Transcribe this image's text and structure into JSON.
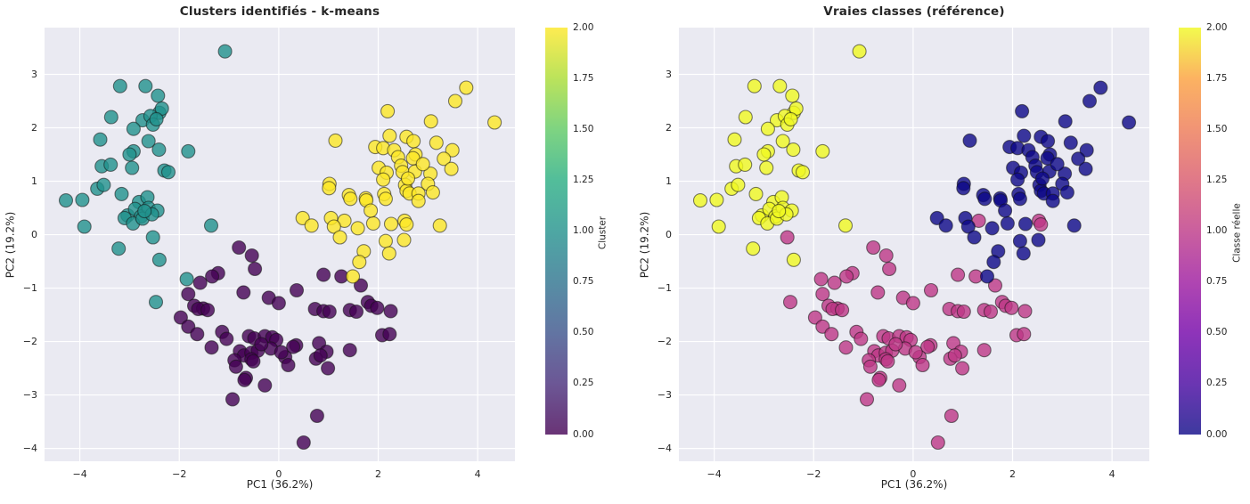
{
  "colors": {
    "figure_background": "#ffffff",
    "axes_background": "#eaeaf2",
    "grid_color": "#ffffff",
    "text_color": "#262626",
    "point_edge_color": "#141414",
    "point_alpha": 0.8
  },
  "points_format": [
    "x",
    "y",
    "kmeans_cluster",
    "true_class"
  ],
  "points": [
    [
      -1.08,
      3.43,
      1,
      2
    ],
    [
      -3.19,
      2.78,
      1,
      2
    ],
    [
      -2.68,
      2.78,
      1,
      2
    ],
    [
      -2.43,
      2.6,
      1,
      2
    ],
    [
      -3.37,
      2.2,
      1,
      2
    ],
    [
      -2.4,
      2.28,
      1,
      2
    ],
    [
      -2.35,
      2.36,
      1,
      2
    ],
    [
      -2.74,
      2.14,
      1,
      2
    ],
    [
      -2.58,
      2.22,
      1,
      2
    ],
    [
      -2.92,
      1.98,
      1,
      2
    ],
    [
      -2.53,
      2.06,
      1,
      2
    ],
    [
      -2.46,
      2.16,
      1,
      2
    ],
    [
      -3.59,
      1.78,
      1,
      2
    ],
    [
      -2.62,
      1.75,
      1,
      2
    ],
    [
      -2.41,
      1.59,
      1,
      2
    ],
    [
      -2.92,
      1.56,
      1,
      2
    ],
    [
      -1.82,
      1.56,
      1,
      2
    ],
    [
      -3.0,
      1.5,
      1,
      2
    ],
    [
      -3.56,
      1.28,
      1,
      2
    ],
    [
      -3.38,
      1.31,
      1,
      2
    ],
    [
      -2.95,
      1.25,
      1,
      2
    ],
    [
      -2.3,
      1.2,
      1,
      2
    ],
    [
      -2.22,
      1.17,
      1,
      2
    ],
    [
      -3.65,
      0.86,
      1,
      2
    ],
    [
      -3.52,
      0.93,
      1,
      2
    ],
    [
      -3.16,
      0.76,
      1,
      2
    ],
    [
      -4.28,
      0.64,
      1,
      2
    ],
    [
      -3.95,
      0.65,
      1,
      2
    ],
    [
      -2.81,
      0.61,
      1,
      2
    ],
    [
      -2.64,
      0.7,
      1,
      2
    ],
    [
      -3.04,
      0.36,
      1,
      2
    ],
    [
      -2.89,
      0.48,
      1,
      2
    ],
    [
      -3.1,
      0.31,
      1,
      2
    ],
    [
      -2.77,
      0.34,
      1,
      2
    ],
    [
      -2.62,
      0.5,
      1,
      2
    ],
    [
      -2.44,
      0.45,
      1,
      2
    ],
    [
      -2.93,
      0.21,
      1,
      2
    ],
    [
      -2.74,
      0.3,
      1,
      2
    ],
    [
      -2.55,
      0.38,
      1,
      2
    ],
    [
      -2.7,
      0.44,
      1,
      2
    ],
    [
      -3.91,
      0.15,
      1,
      2
    ],
    [
      -2.53,
      -0.05,
      1,
      1
    ],
    [
      -3.22,
      -0.26,
      1,
      2
    ],
    [
      -2.4,
      -0.47,
      1,
      2
    ],
    [
      -1.36,
      0.17,
      1,
      2
    ],
    [
      -1.85,
      -0.83,
      1,
      1
    ],
    [
      -2.47,
      -1.26,
      1,
      1
    ],
    [
      -0.8,
      -0.24,
      0,
      1
    ],
    [
      -0.54,
      -0.39,
      0,
      1
    ],
    [
      -0.48,
      -0.64,
      0,
      1
    ],
    [
      -1.22,
      -0.72,
      0,
      1
    ],
    [
      -1.34,
      -0.78,
      0,
      1
    ],
    [
      -1.58,
      -0.9,
      0,
      1
    ],
    [
      -0.71,
      -1.08,
      0,
      1
    ],
    [
      0.36,
      -1.04,
      0,
      1
    ],
    [
      0.9,
      -0.75,
      0,
      1
    ],
    [
      1.26,
      -0.78,
      0,
      1
    ],
    [
      1.65,
      -0.95,
      0,
      1
    ],
    [
      -0.2,
      -1.18,
      0,
      1
    ],
    [
      0.0,
      -1.28,
      0,
      1
    ],
    [
      -1.82,
      -1.11,
      0,
      1
    ],
    [
      -1.7,
      -1.33,
      0,
      1
    ],
    [
      -1.52,
      -1.38,
      0,
      1
    ],
    [
      -1.62,
      -1.39,
      0,
      1
    ],
    [
      -1.43,
      -1.41,
      0,
      1
    ],
    [
      0.73,
      -1.39,
      0,
      1
    ],
    [
      0.9,
      -1.43,
      0,
      1
    ],
    [
      1.02,
      -1.44,
      0,
      1
    ],
    [
      1.43,
      -1.41,
      0,
      1
    ],
    [
      1.56,
      -1.44,
      0,
      1
    ],
    [
      1.79,
      -1.26,
      0,
      1
    ],
    [
      1.86,
      -1.33,
      0,
      1
    ],
    [
      1.98,
      -1.37,
      0,
      1
    ],
    [
      2.25,
      -1.43,
      0,
      1
    ],
    [
      -1.97,
      -1.55,
      0,
      1
    ],
    [
      -1.82,
      -1.72,
      0,
      1
    ],
    [
      -1.64,
      -1.86,
      0,
      1
    ],
    [
      -1.14,
      -1.82,
      0,
      1
    ],
    [
      2.08,
      -1.88,
      0,
      1
    ],
    [
      2.23,
      -1.86,
      0,
      1
    ],
    [
      -0.6,
      -1.9,
      0,
      1
    ],
    [
      -0.49,
      -1.94,
      0,
      1
    ],
    [
      -0.28,
      -1.9,
      0,
      1
    ],
    [
      -0.13,
      -1.92,
      0,
      1
    ],
    [
      -0.05,
      -1.97,
      0,
      1
    ],
    [
      -1.35,
      -2.11,
      0,
      1
    ],
    [
      -0.16,
      -2.13,
      0,
      1
    ],
    [
      0.35,
      -2.07,
      0,
      1
    ],
    [
      0.29,
      -2.1,
      0,
      1
    ],
    [
      0.81,
      -2.03,
      0,
      1
    ],
    [
      0.96,
      -2.19,
      0,
      1
    ],
    [
      -0.78,
      -2.18,
      0,
      1
    ],
    [
      -0.7,
      -2.26,
      0,
      1
    ],
    [
      -0.55,
      -2.21,
      0,
      1
    ],
    [
      -0.42,
      -2.17,
      0,
      1
    ],
    [
      -0.55,
      -2.33,
      0,
      1
    ],
    [
      -0.51,
      -2.37,
      0,
      1
    ],
    [
      -0.89,
      -2.35,
      0,
      1
    ],
    [
      -0.86,
      -2.47,
      0,
      1
    ],
    [
      0.13,
      -2.29,
      0,
      1
    ],
    [
      0.19,
      -2.44,
      0,
      1
    ],
    [
      0.75,
      -2.32,
      0,
      1
    ],
    [
      0.84,
      -2.26,
      0,
      1
    ],
    [
      0.99,
      -2.5,
      0,
      1
    ],
    [
      1.43,
      -2.16,
      0,
      1
    ],
    [
      -0.66,
      -2.68,
      0,
      1
    ],
    [
      -0.69,
      -2.72,
      0,
      1
    ],
    [
      -0.28,
      -2.82,
      0,
      1
    ],
    [
      -0.93,
      -3.08,
      0,
      1
    ],
    [
      0.77,
      -3.39,
      0,
      1
    ],
    [
      0.5,
      -3.89,
      0,
      1
    ],
    [
      -0.35,
      -2.05,
      0,
      1
    ],
    [
      0.05,
      -2.2,
      0,
      1
    ],
    [
      -1.05,
      -1.95,
      0,
      1
    ],
    [
      3.77,
      2.75,
      2,
      0
    ],
    [
      3.55,
      2.5,
      2,
      0
    ],
    [
      2.19,
      2.31,
      2,
      0
    ],
    [
      3.06,
      2.12,
      2,
      0
    ],
    [
      4.34,
      2.1,
      2,
      0
    ],
    [
      1.14,
      1.76,
      2,
      0
    ],
    [
      2.23,
      1.85,
      2,
      0
    ],
    [
      2.57,
      1.83,
      2,
      0
    ],
    [
      2.71,
      1.75,
      2,
      0
    ],
    [
      1.94,
      1.64,
      2,
      0
    ],
    [
      2.1,
      1.62,
      2,
      0
    ],
    [
      2.32,
      1.58,
      2,
      0
    ],
    [
      3.17,
      1.72,
      2,
      0
    ],
    [
      2.75,
      1.5,
      2,
      0
    ],
    [
      3.49,
      1.58,
      2,
      0
    ],
    [
      3.32,
      1.42,
      2,
      0
    ],
    [
      2.7,
      1.43,
      2,
      0
    ],
    [
      2.4,
      1.45,
      2,
      0
    ],
    [
      3.47,
      1.23,
      2,
      0
    ],
    [
      2.01,
      1.25,
      2,
      0
    ],
    [
      2.17,
      1.16,
      2,
      0
    ],
    [
      2.46,
      1.29,
      2,
      0
    ],
    [
      2.49,
      1.17,
      2,
      0
    ],
    [
      2.74,
      1.18,
      2,
      0
    ],
    [
      3.05,
      1.14,
      2,
      0
    ],
    [
      2.9,
      1.32,
      2,
      0
    ],
    [
      2.1,
      1.03,
      2,
      0
    ],
    [
      2.54,
      0.93,
      2,
      0
    ],
    [
      2.57,
      0.82,
      2,
      0
    ],
    [
      2.6,
      1.05,
      2,
      0
    ],
    [
      3.0,
      0.95,
      2,
      0
    ],
    [
      1.02,
      0.95,
      2,
      0
    ],
    [
      1.01,
      0.87,
      2,
      0
    ],
    [
      1.41,
      0.74,
      2,
      0
    ],
    [
      1.44,
      0.67,
      2,
      0
    ],
    [
      1.75,
      0.68,
      2,
      0
    ],
    [
      1.76,
      0.64,
      2,
      0
    ],
    [
      2.12,
      0.76,
      2,
      0
    ],
    [
      2.15,
      0.67,
      2,
      0
    ],
    [
      2.63,
      0.77,
      2,
      0
    ],
    [
      2.81,
      0.77,
      2,
      0
    ],
    [
      3.1,
      0.79,
      2,
      0
    ],
    [
      2.81,
      0.63,
      2,
      0
    ],
    [
      1.05,
      0.31,
      2,
      0
    ],
    [
      1.32,
      0.26,
      2,
      1
    ],
    [
      1.11,
      0.15,
      2,
      0
    ],
    [
      1.59,
      0.12,
      2,
      0
    ],
    [
      1.9,
      0.21,
      2,
      0
    ],
    [
      2.26,
      0.2,
      2,
      0
    ],
    [
      2.53,
      0.26,
      2,
      1
    ],
    [
      2.57,
      0.19,
      2,
      1
    ],
    [
      3.24,
      0.17,
      2,
      0
    ],
    [
      1.23,
      -0.05,
      2,
      0
    ],
    [
      2.15,
      -0.12,
      2,
      0
    ],
    [
      2.52,
      -0.1,
      2,
      0
    ],
    [
      1.71,
      -0.31,
      2,
      0
    ],
    [
      2.22,
      -0.35,
      2,
      0
    ],
    [
      1.62,
      -0.51,
      2,
      0
    ],
    [
      1.49,
      -0.78,
      2,
      0
    ],
    [
      0.48,
      0.31,
      2,
      0
    ],
    [
      0.66,
      0.17,
      2,
      0
    ],
    [
      1.85,
      0.45,
      2,
      0
    ]
  ],
  "chart_data": [
    {
      "type": "scatter",
      "title": "Clusters identifiés - k-means",
      "xlabel": "PC1 (36.2%)",
      "ylabel": "PC2 (19.2%)",
      "xlim": [
        -4.71,
        4.75
      ],
      "ylim": [
        -4.24,
        3.875
      ],
      "grid": true,
      "xticks": {
        "values": [
          -4,
          -2,
          0,
          2,
          4
        ],
        "labels": [
          "−4",
          "−2",
          "0",
          "2",
          "4"
        ]
      },
      "yticks": {
        "values": [
          3,
          2,
          1,
          0,
          -1,
          -2,
          -3,
          -4
        ],
        "labels": [
          "3",
          "2",
          "1",
          "0",
          "−1",
          "−2",
          "−3",
          "−4"
        ]
      },
      "color_field": "kmeans_cluster",
      "colormap": "viridis",
      "point_colors": {
        "0": "#440154",
        "1": "#21918c",
        "2": "#fde725"
      },
      "colorbar": {
        "label": "Cluster",
        "tick_labels_top_to_bottom": [
          "2.00",
          "1.75",
          "1.50",
          "1.25",
          "1.00",
          "0.75",
          "0.50",
          "0.25",
          "0.00"
        ],
        "gradient_bottom_to_top": [
          "#440154",
          "#472d7b",
          "#3b528b",
          "#2c728e",
          "#21918c",
          "#27ad81",
          "#5ec962",
          "#aadc32",
          "#fde725"
        ]
      }
    },
    {
      "type": "scatter",
      "title": "Vraies classes (référence)",
      "xlabel": "PC1 (36.2%)",
      "ylabel": "PC2 (19.2%)",
      "xlim": [
        -4.71,
        4.75
      ],
      "ylim": [
        -4.24,
        3.875
      ],
      "grid": true,
      "xticks": {
        "values": [
          -4,
          -2,
          0,
          2,
          4
        ],
        "labels": [
          "−4",
          "−2",
          "0",
          "2",
          "4"
        ]
      },
      "yticks": {
        "values": [
          3,
          2,
          1,
          0,
          -1,
          -2,
          -3,
          -4
        ],
        "labels": [
          "3",
          "2",
          "1",
          "0",
          "−1",
          "−2",
          "−3",
          "−4"
        ]
      },
      "color_field": "true_class",
      "colormap": "plasma",
      "point_colors": {
        "0": "#0d0887",
        "1": "#bd3786",
        "2": "#f0f921"
      },
      "colorbar": {
        "label": "Classe réelle",
        "tick_labels_top_to_bottom": [
          "2.00",
          "1.75",
          "1.50",
          "1.25",
          "1.00",
          "0.75",
          "0.50",
          "0.25",
          "0.00"
        ],
        "gradient_bottom_to_top": [
          "#0d0887",
          "#46039f",
          "#7201a8",
          "#9c179e",
          "#bd3786",
          "#d8576b",
          "#ed7953",
          "#fb9f3a",
          "#f0f921"
        ]
      }
    }
  ]
}
